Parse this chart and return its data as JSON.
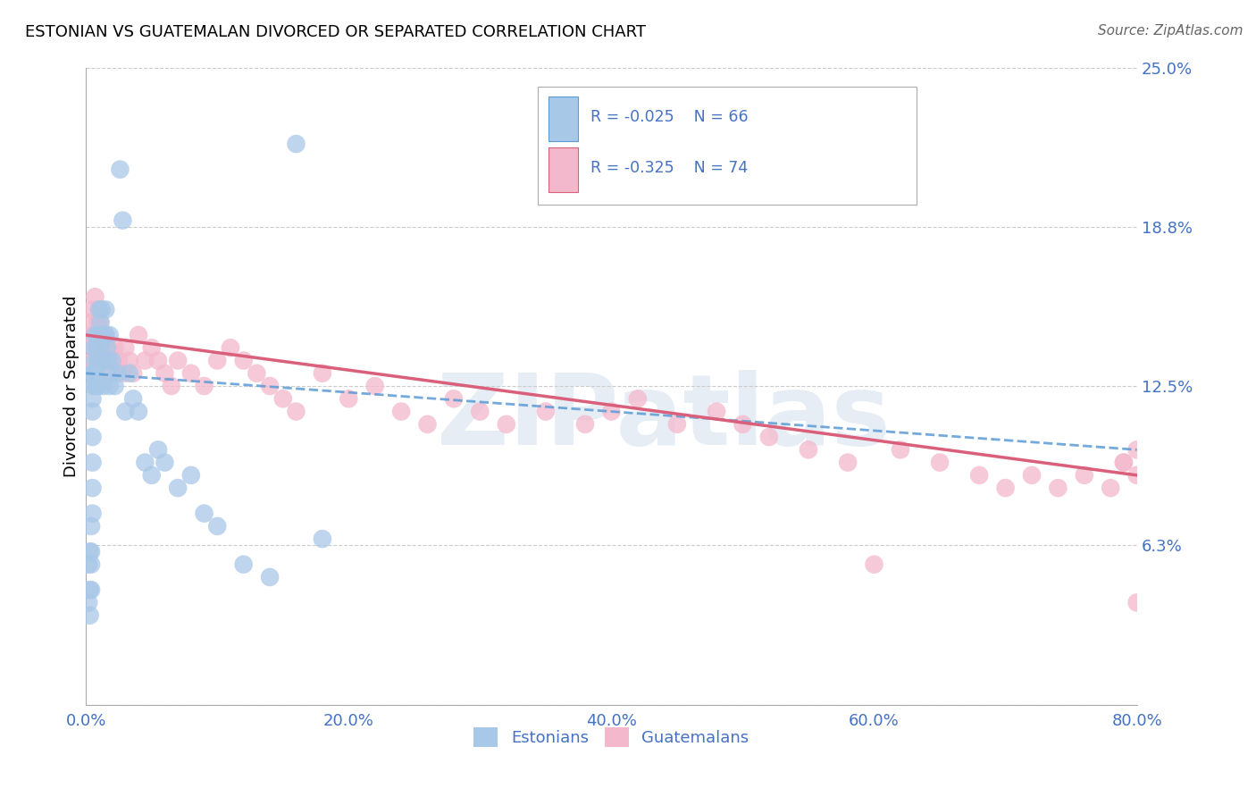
{
  "title": "ESTONIAN VS GUATEMALAN DIVORCED OR SEPARATED CORRELATION CHART",
  "source": "Source: ZipAtlas.com",
  "ylabel": "Divorced or Separated",
  "xlim": [
    0.0,
    0.8
  ],
  "ylim": [
    0.0,
    0.25
  ],
  "xticks": [
    0.0,
    0.2,
    0.4,
    0.6,
    0.8
  ],
  "xtick_labels": [
    "0.0%",
    "20.0%",
    "40.0%",
    "60.0%",
    "80.0%"
  ],
  "ytick_positions": [
    0.0,
    0.0625,
    0.125,
    0.1875,
    0.25
  ],
  "ytick_labels": [
    "",
    "6.3%",
    "12.5%",
    "18.8%",
    "25.0%"
  ],
  "r_estonian": -0.025,
  "n_estonian": 66,
  "r_guatemalan": -0.325,
  "n_guatemalan": 74,
  "color_estonian": "#a8c8e8",
  "color_guatemalan": "#f4b8cc",
  "color_estonian_line": "#5b9bd5",
  "color_guatemalan_line": "#d95f7a",
  "color_text": "#4472c4",
  "watermark": "ZIPatlas",
  "estonian_x": [
    0.002,
    0.002,
    0.003,
    0.003,
    0.003,
    0.004,
    0.004,
    0.004,
    0.004,
    0.005,
    0.005,
    0.005,
    0.005,
    0.005,
    0.005,
    0.005,
    0.006,
    0.006,
    0.006,
    0.007,
    0.007,
    0.007,
    0.008,
    0.008,
    0.009,
    0.009,
    0.009,
    0.01,
    0.01,
    0.01,
    0.011,
    0.011,
    0.012,
    0.012,
    0.013,
    0.013,
    0.014,
    0.014,
    0.015,
    0.015,
    0.016,
    0.017,
    0.018,
    0.018,
    0.019,
    0.02,
    0.022,
    0.024,
    0.026,
    0.028,
    0.03,
    0.033,
    0.036,
    0.04,
    0.045,
    0.05,
    0.055,
    0.06,
    0.07,
    0.08,
    0.09,
    0.1,
    0.12,
    0.14,
    0.16,
    0.18
  ],
  "estonian_y": [
    0.055,
    0.04,
    0.06,
    0.045,
    0.035,
    0.07,
    0.055,
    0.045,
    0.06,
    0.13,
    0.12,
    0.115,
    0.105,
    0.095,
    0.085,
    0.075,
    0.14,
    0.13,
    0.125,
    0.145,
    0.135,
    0.125,
    0.14,
    0.13,
    0.145,
    0.135,
    0.125,
    0.155,
    0.145,
    0.135,
    0.15,
    0.14,
    0.155,
    0.145,
    0.135,
    0.125,
    0.145,
    0.135,
    0.155,
    0.145,
    0.14,
    0.135,
    0.145,
    0.125,
    0.13,
    0.135,
    0.125,
    0.13,
    0.21,
    0.19,
    0.115,
    0.13,
    0.12,
    0.115,
    0.095,
    0.09,
    0.1,
    0.095,
    0.085,
    0.09,
    0.075,
    0.07,
    0.055,
    0.05,
    0.22,
    0.065
  ],
  "guatemalan_x": [
    0.003,
    0.004,
    0.005,
    0.005,
    0.006,
    0.007,
    0.008,
    0.009,
    0.009,
    0.01,
    0.01,
    0.011,
    0.012,
    0.013,
    0.014,
    0.015,
    0.016,
    0.017,
    0.018,
    0.02,
    0.022,
    0.025,
    0.028,
    0.03,
    0.033,
    0.036,
    0.04,
    0.045,
    0.05,
    0.055,
    0.06,
    0.065,
    0.07,
    0.08,
    0.09,
    0.1,
    0.11,
    0.12,
    0.13,
    0.14,
    0.15,
    0.16,
    0.18,
    0.2,
    0.22,
    0.24,
    0.26,
    0.28,
    0.3,
    0.32,
    0.35,
    0.38,
    0.4,
    0.42,
    0.45,
    0.48,
    0.5,
    0.52,
    0.55,
    0.58,
    0.6,
    0.62,
    0.65,
    0.68,
    0.7,
    0.72,
    0.74,
    0.76,
    0.78,
    0.79,
    0.79,
    0.8,
    0.8,
    0.8
  ],
  "guatemalan_y": [
    0.15,
    0.145,
    0.155,
    0.135,
    0.14,
    0.16,
    0.145,
    0.15,
    0.14,
    0.155,
    0.145,
    0.15,
    0.145,
    0.135,
    0.14,
    0.145,
    0.135,
    0.14,
    0.13,
    0.135,
    0.14,
    0.135,
    0.13,
    0.14,
    0.135,
    0.13,
    0.145,
    0.135,
    0.14,
    0.135,
    0.13,
    0.125,
    0.135,
    0.13,
    0.125,
    0.135,
    0.14,
    0.135,
    0.13,
    0.125,
    0.12,
    0.115,
    0.13,
    0.12,
    0.125,
    0.115,
    0.11,
    0.12,
    0.115,
    0.11,
    0.115,
    0.11,
    0.115,
    0.12,
    0.11,
    0.115,
    0.11,
    0.105,
    0.1,
    0.095,
    0.055,
    0.1,
    0.095,
    0.09,
    0.085,
    0.09,
    0.085,
    0.09,
    0.085,
    0.095,
    0.095,
    0.09,
    0.04,
    0.1
  ]
}
